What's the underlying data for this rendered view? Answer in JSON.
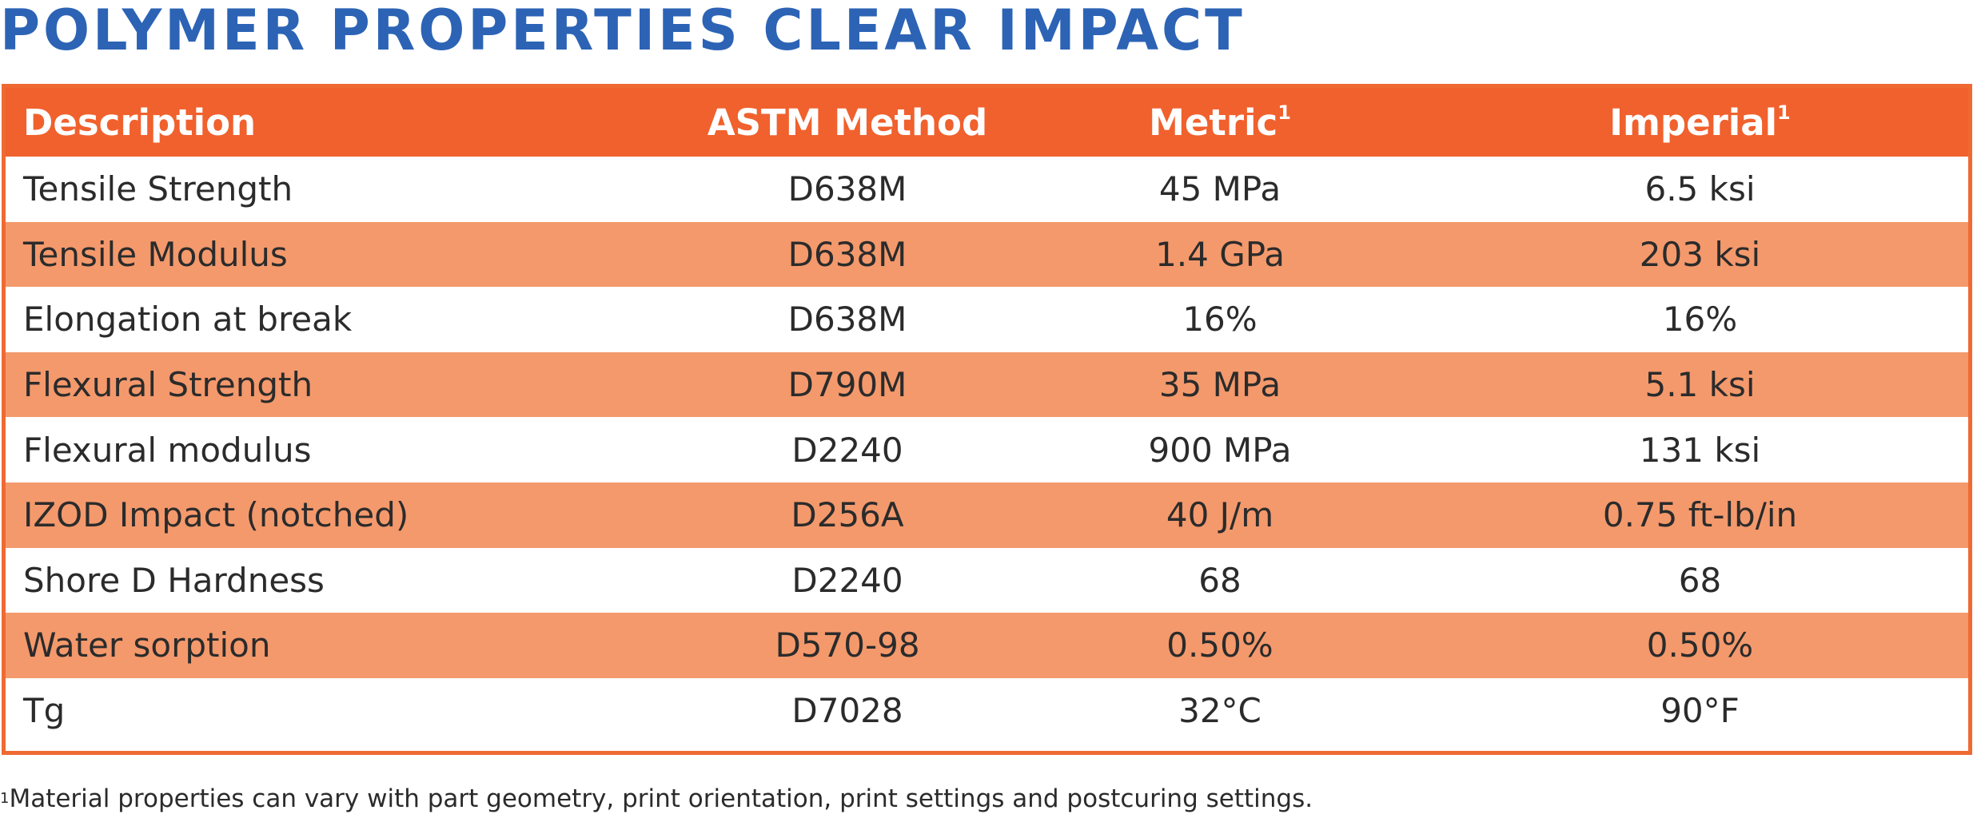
{
  "title": "Polymer Properties Clear Impact",
  "table": {
    "headers": [
      {
        "label": "Description",
        "sup": ""
      },
      {
        "label": "ASTM Method",
        "sup": ""
      },
      {
        "label": "Metric",
        "sup": "1"
      },
      {
        "label": "Imperial",
        "sup": "1"
      }
    ],
    "rows": [
      {
        "description": "Tensile Strength",
        "astm": "D638M",
        "metric": "45 MPa",
        "imperial": "6.5 ksi"
      },
      {
        "description": "Tensile Modulus",
        "astm": "D638M",
        "metric": "1.4 GPa",
        "imperial": "203 ksi"
      },
      {
        "description": "Elongation at break",
        "astm": "D638M",
        "metric": "16%",
        "imperial": "16%"
      },
      {
        "description": "Flexural Strength",
        "astm": "D790M",
        "metric": "35 MPa",
        "imperial": "5.1 ksi"
      },
      {
        "description": "Flexural modulus",
        "astm": "D2240",
        "metric": "900 MPa",
        "imperial": "131 ksi"
      },
      {
        "description": "IZOD Impact (notched)",
        "astm": "D256A",
        "metric": "40 J/m",
        "imperial": "0.75 ft-lb/in"
      },
      {
        "description": "Shore D Hardness",
        "astm": "D2240",
        "metric": "68",
        "imperial": "68"
      },
      {
        "description": "Water sorption",
        "astm": "D570-98",
        "metric": "0.50%",
        "imperial": "0.50%"
      },
      {
        "description": "Tg",
        "astm": "D7028",
        "metric": "32°C",
        "imperial": "90°F"
      }
    ]
  },
  "footnote": {
    "sup": "1",
    "text": "Material properties can vary with part geometry, print orientation, print settings and postcuring settings."
  },
  "colors": {
    "title": "#2c63b5",
    "header_bg": "#f0612d",
    "row_orange": "#f4996c",
    "border": "#ef6a33"
  }
}
